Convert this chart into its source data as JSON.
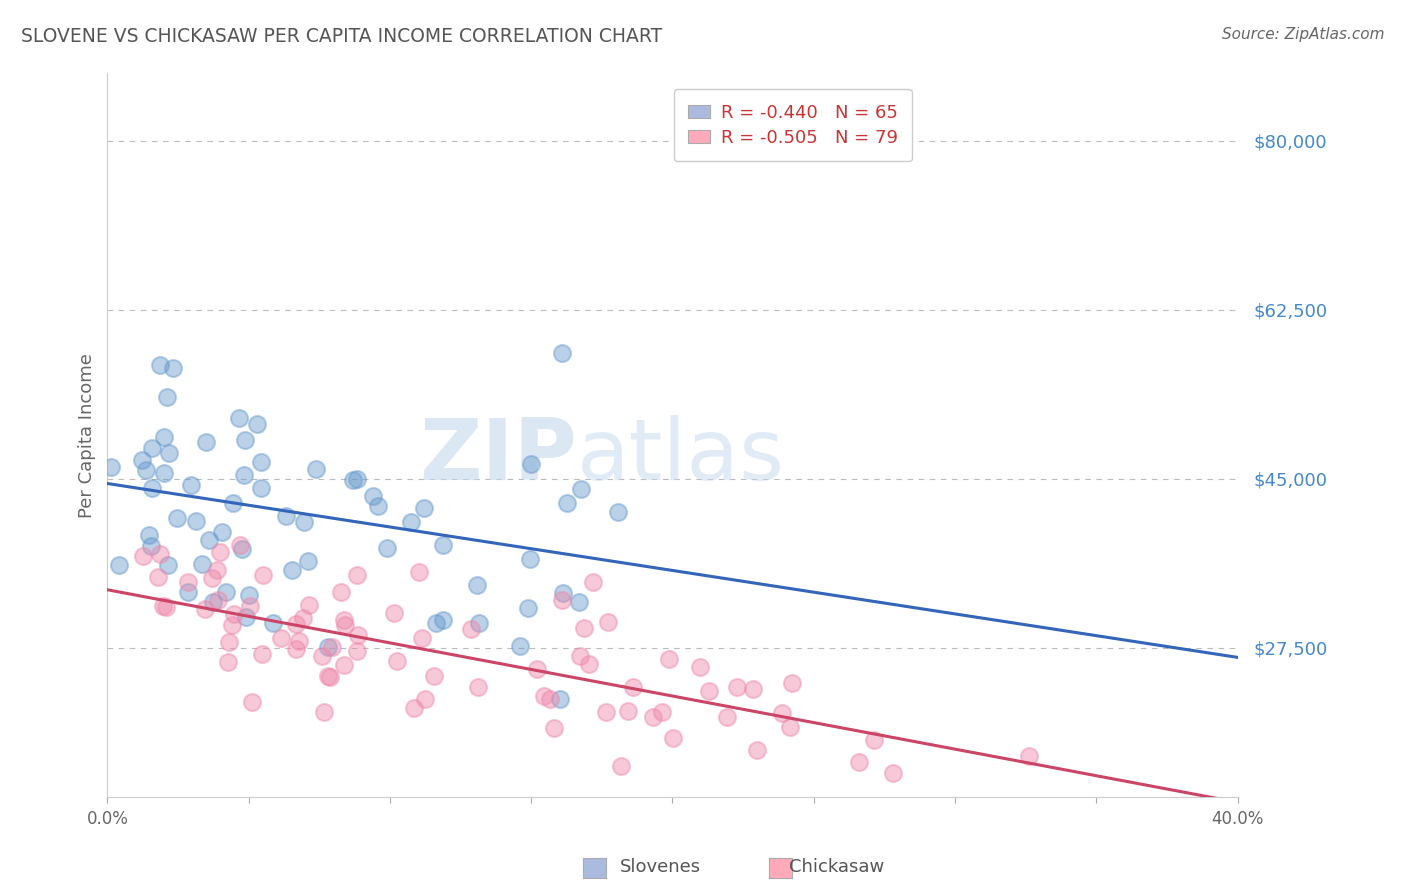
{
  "title": "SLOVENE VS CHICKASAW PER CAPITA INCOME CORRELATION CHART",
  "source_text": "Source: ZipAtlas.com",
  "ylabel": "Per Capita Income",
  "xmin": 0.0,
  "xmax": 0.4,
  "ymin": 12000,
  "ymax": 87000,
  "ytick_positions": [
    27500,
    45000,
    62500,
    80000
  ],
  "ytick_labels": [
    "$27,500",
    "$45,000",
    "$62,500",
    "$80,000"
  ],
  "xticks": [
    0.0,
    0.05,
    0.1,
    0.15,
    0.2,
    0.25,
    0.3,
    0.35,
    0.4
  ],
  "xtick_labels": [
    "0.0%",
    "",
    "",
    "",
    "",
    "",
    "",
    "",
    "40.0%"
  ],
  "slovene_color": "#6699cc",
  "chickasaw_color": "#ee88aa",
  "slovene_line_color": "#3366bb",
  "chickasaw_line_color": "#cc4466",
  "R_slovene": -0.44,
  "N_slovene": 65,
  "R_chickasaw": -0.505,
  "N_chickasaw": 79,
  "background_color": "#ffffff",
  "grid_color": "#bbbbbb",
  "title_color": "#555555",
  "ylabel_color": "#666666",
  "yticklabel_color": "#4488cc",
  "slovene_intercept": 44500,
  "slovene_slope": -45000,
  "chickasaw_intercept": 33500,
  "chickasaw_slope": -55000,
  "legend_box_color_slovene": "#aabbdd",
  "legend_box_color_chickasaw": "#ffaabb",
  "legend_text_color": "#334466",
  "legend_value_color": "#cc4444"
}
